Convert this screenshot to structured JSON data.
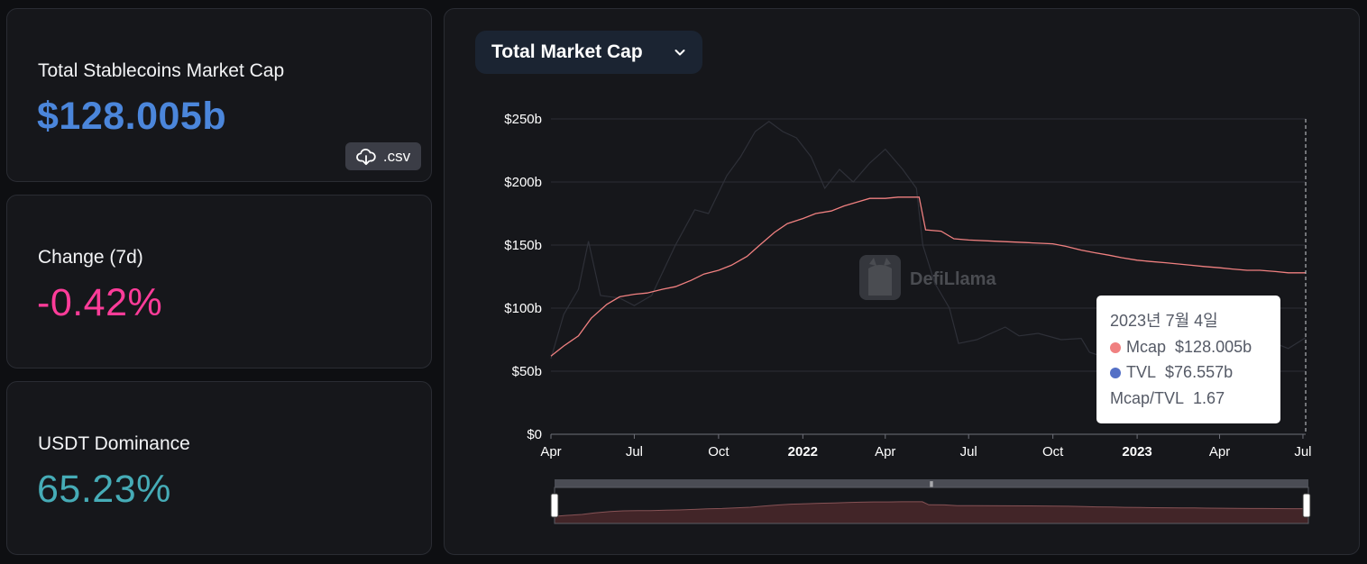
{
  "stats": {
    "mcap_label": "Total Stablecoins Market Cap",
    "mcap_value": "$128.005b",
    "csv_label": ".csv",
    "change_label": "Change (7d)",
    "change_value": "-0.42%",
    "dominance_label": "USDT Dominance",
    "dominance_value": "65.23%"
  },
  "chart_selector": {
    "label": "Total Market Cap"
  },
  "watermark": "DefiLlama",
  "tooltip": {
    "date": "2023년 7월 4일",
    "mcap_label": "Mcap",
    "mcap_value": "$128.005b",
    "tvl_label": "TVL",
    "tvl_value": "$76.557b",
    "ratio_label": "Mcap/TVL",
    "ratio_value": "1.67"
  },
  "colors": {
    "mcap_line": "#f08080",
    "tvl_line": "#2e3038",
    "mcap_value": "#4b86db",
    "change_value": "#fd3c99",
    "dominance_value": "#46acb7",
    "tvl_dot": "#5470c6"
  },
  "chart_data": {
    "type": "line",
    "y_ticks": [
      "$250b",
      "$200b",
      "$150b",
      "$100b",
      "$50b",
      "$0"
    ],
    "ylim": [
      0,
      250
    ],
    "y_unit": "billions USD",
    "x_ticks": [
      {
        "label": "Apr",
        "date": "2021-04-01",
        "bold": false
      },
      {
        "label": "Jul",
        "date": "2021-07-01",
        "bold": false
      },
      {
        "label": "Oct",
        "date": "2021-10-01",
        "bold": false
      },
      {
        "label": "2022",
        "date": "2022-01-01",
        "bold": true
      },
      {
        "label": "Apr",
        "date": "2022-04-01",
        "bold": false
      },
      {
        "label": "Jul",
        "date": "2022-07-01",
        "bold": false
      },
      {
        "label": "Oct",
        "date": "2022-10-01",
        "bold": false
      },
      {
        "label": "2023",
        "date": "2023-01-01",
        "bold": true
      },
      {
        "label": "Apr",
        "date": "2023-04-01",
        "bold": false
      },
      {
        "label": "Jul",
        "date": "2023-07-01",
        "bold": false
      }
    ],
    "xlim": [
      "2021-04-01",
      "2023-07-04"
    ],
    "series": [
      {
        "name": "Mcap",
        "points": [
          [
            "2021-04-01",
            62
          ],
          [
            "2021-04-15",
            70
          ],
          [
            "2021-05-01",
            78
          ],
          [
            "2021-05-15",
            92
          ],
          [
            "2021-06-01",
            103
          ],
          [
            "2021-06-15",
            109
          ],
          [
            "2021-07-01",
            111
          ],
          [
            "2021-07-15",
            112
          ],
          [
            "2021-08-01",
            115
          ],
          [
            "2021-08-15",
            117
          ],
          [
            "2021-09-01",
            122
          ],
          [
            "2021-09-15",
            127
          ],
          [
            "2021-10-01",
            130
          ],
          [
            "2021-10-15",
            134
          ],
          [
            "2021-11-01",
            141
          ],
          [
            "2021-11-15",
            150
          ],
          [
            "2021-12-01",
            160
          ],
          [
            "2021-12-15",
            167
          ],
          [
            "2022-01-01",
            171
          ],
          [
            "2022-01-15",
            175
          ],
          [
            "2022-02-01",
            177
          ],
          [
            "2022-02-15",
            181
          ],
          [
            "2022-03-01",
            184
          ],
          [
            "2022-03-15",
            187
          ],
          [
            "2022-04-01",
            187
          ],
          [
            "2022-04-15",
            188
          ],
          [
            "2022-05-01",
            188
          ],
          [
            "2022-05-08",
            188
          ],
          [
            "2022-05-15",
            162
          ],
          [
            "2022-06-01",
            161
          ],
          [
            "2022-06-15",
            155
          ],
          [
            "2022-07-01",
            154
          ],
          [
            "2022-08-01",
            153
          ],
          [
            "2022-09-01",
            152
          ],
          [
            "2022-10-01",
            151
          ],
          [
            "2022-10-15",
            149
          ],
          [
            "2022-11-01",
            146
          ],
          [
            "2022-11-15",
            144
          ],
          [
            "2022-12-01",
            142
          ],
          [
            "2022-12-15",
            140
          ],
          [
            "2023-01-01",
            138
          ],
          [
            "2023-01-15",
            137
          ],
          [
            "2023-02-01",
            136
          ],
          [
            "2023-02-15",
            135
          ],
          [
            "2023-03-01",
            134
          ],
          [
            "2023-03-15",
            133
          ],
          [
            "2023-04-01",
            132
          ],
          [
            "2023-04-15",
            131
          ],
          [
            "2023-05-01",
            130
          ],
          [
            "2023-05-15",
            130
          ],
          [
            "2023-06-01",
            129
          ],
          [
            "2023-06-15",
            128
          ],
          [
            "2023-07-04",
            128.005
          ]
        ]
      },
      {
        "name": "TVL",
        "points": [
          [
            "2021-04-01",
            60
          ],
          [
            "2021-04-15",
            95
          ],
          [
            "2021-05-01",
            115
          ],
          [
            "2021-05-12",
            153
          ],
          [
            "2021-05-25",
            110
          ],
          [
            "2021-06-15",
            108
          ],
          [
            "2021-07-01",
            102
          ],
          [
            "2021-07-20",
            110
          ],
          [
            "2021-08-15",
            150
          ],
          [
            "2021-09-05",
            178
          ],
          [
            "2021-09-20",
            175
          ],
          [
            "2021-10-10",
            205
          ],
          [
            "2021-10-25",
            220
          ],
          [
            "2021-11-10",
            240
          ],
          [
            "2021-11-25",
            248
          ],
          [
            "2021-12-10",
            240
          ],
          [
            "2021-12-25",
            235
          ],
          [
            "2022-01-10",
            220
          ],
          [
            "2022-01-25",
            195
          ],
          [
            "2022-02-10",
            210
          ],
          [
            "2022-02-25",
            200
          ],
          [
            "2022-03-15",
            215
          ],
          [
            "2022-04-01",
            226
          ],
          [
            "2022-04-20",
            210
          ],
          [
            "2022-05-05",
            195
          ],
          [
            "2022-05-12",
            150
          ],
          [
            "2022-05-25",
            120
          ],
          [
            "2022-06-10",
            100
          ],
          [
            "2022-06-20",
            72
          ],
          [
            "2022-07-10",
            75
          ],
          [
            "2022-08-10",
            85
          ],
          [
            "2022-08-25",
            78
          ],
          [
            "2022-09-15",
            80
          ],
          [
            "2022-10-10",
            75
          ],
          [
            "2022-11-01",
            76
          ],
          [
            "2022-11-10",
            65
          ],
          [
            "2022-12-01",
            60
          ],
          [
            "2023-01-01",
            58
          ],
          [
            "2023-01-25",
            68
          ],
          [
            "2023-02-15",
            72
          ],
          [
            "2023-03-10",
            66
          ],
          [
            "2023-04-10",
            72
          ],
          [
            "2023-05-05",
            70
          ],
          [
            "2023-06-01",
            72
          ],
          [
            "2023-06-15",
            68
          ],
          [
            "2023-07-04",
            76.557
          ]
        ]
      }
    ],
    "legend": "none"
  }
}
